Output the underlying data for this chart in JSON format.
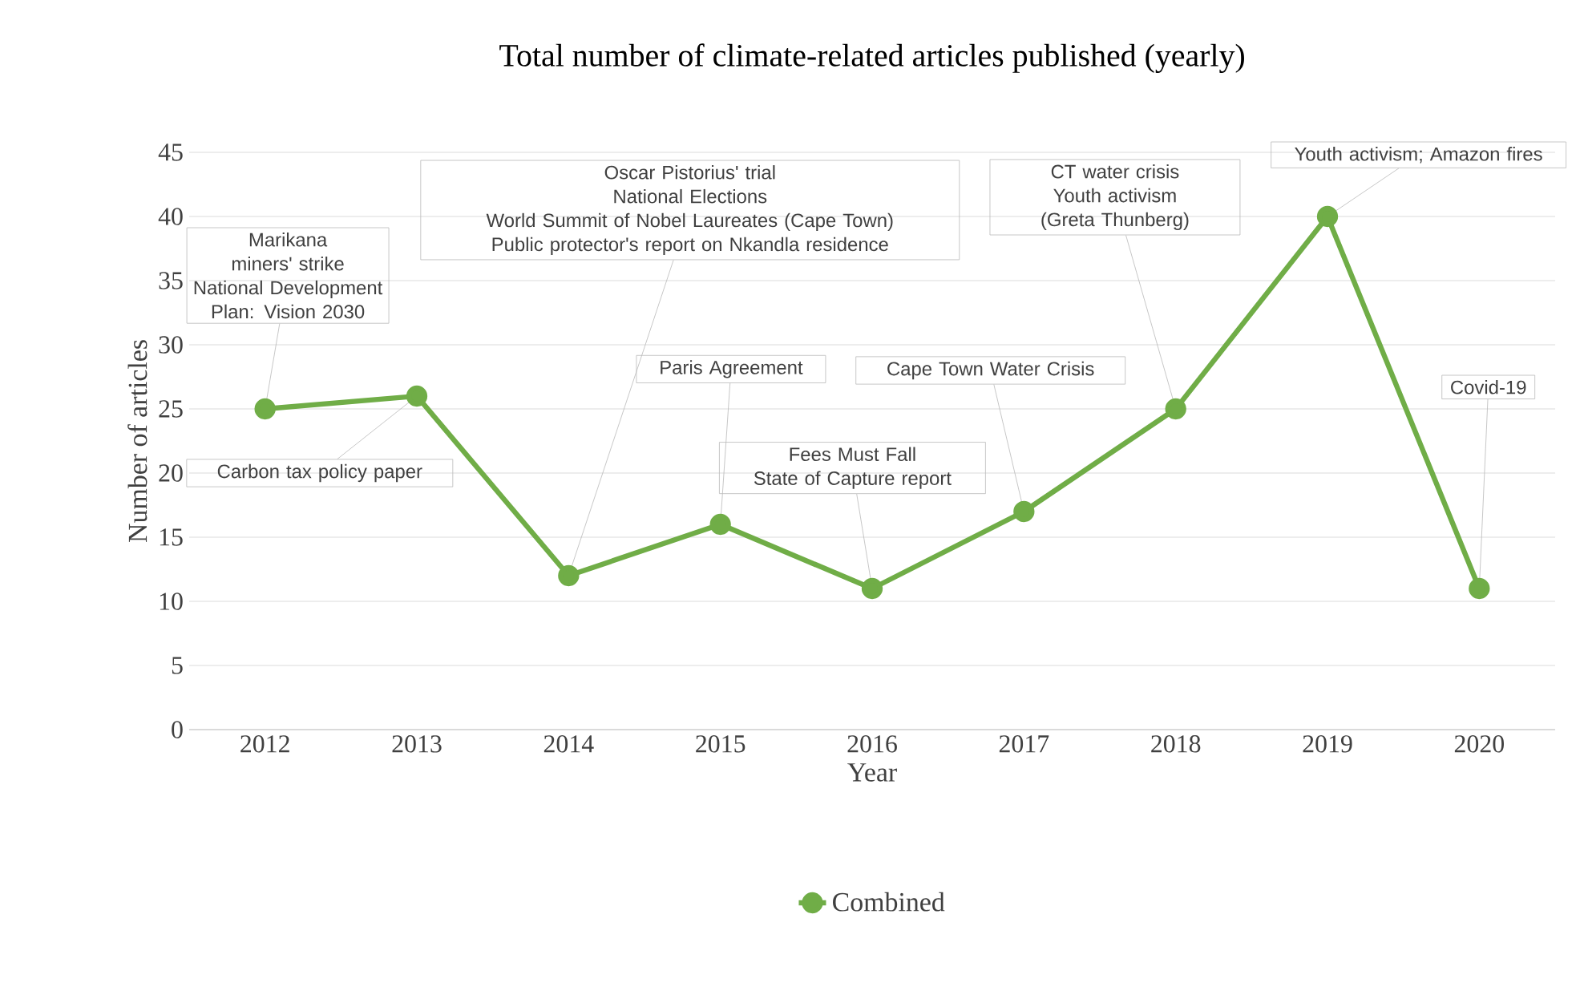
{
  "chart_data": {
    "type": "line",
    "title": "Total number of climate-related articles published (yearly)",
    "xlabel": "Year",
    "ylabel": "Number of articles",
    "categories": [
      "2012",
      "2013",
      "2014",
      "2015",
      "2016",
      "2017",
      "2018",
      "2019",
      "2020"
    ],
    "series": [
      {
        "name": "Combined",
        "color": "#70ad47",
        "values": [
          25,
          26,
          12,
          16,
          11,
          17,
          25,
          40,
          11
        ]
      }
    ],
    "ylim": [
      0,
      45
    ],
    "yticks": [
      0,
      5,
      10,
      15,
      20,
      25,
      30,
      35,
      40,
      45
    ],
    "grid": "y",
    "legend": "bottom",
    "marker": "circle",
    "line_style": "solid",
    "annotations": [
      "Marikana miners' strike",
      {
        "text": "National Development Plan: Vision 2030",
        "x": "2012",
        "y": 25
      },
      {
        "text": "Carbon tax policy paper",
        "x": "2013",
        "y": 26
      },
      "Oscar Pistorius' trial",
      "National Elections",
      "World Summit of Nobel Laureates (Cape Town)",
      {
        "text": "Public protector's report on Nkandla residence",
        "x": "2014",
        "y": 12
      },
      {
        "text": "Paris Agreement",
        "x": "2015",
        "y": 16
      },
      "Fees Must Fall",
      {
        "text": "State of Capture report",
        "x": "2016",
        "y": 11
      },
      {
        "text": "Cape Town  Water Crisis",
        "x": "2017",
        "y": 17
      },
      "CT water crisis",
      {
        "text": "Youth activism (Greta Thunberg)",
        "x": "2018",
        "y": 25
      },
      {
        "text": "Youth activism; Amazon fires",
        "x": "2019",
        "y": 40
      },
      {
        "text": "Covid-19",
        "x": "2020",
        "y": 11
      }
    ]
  }
}
